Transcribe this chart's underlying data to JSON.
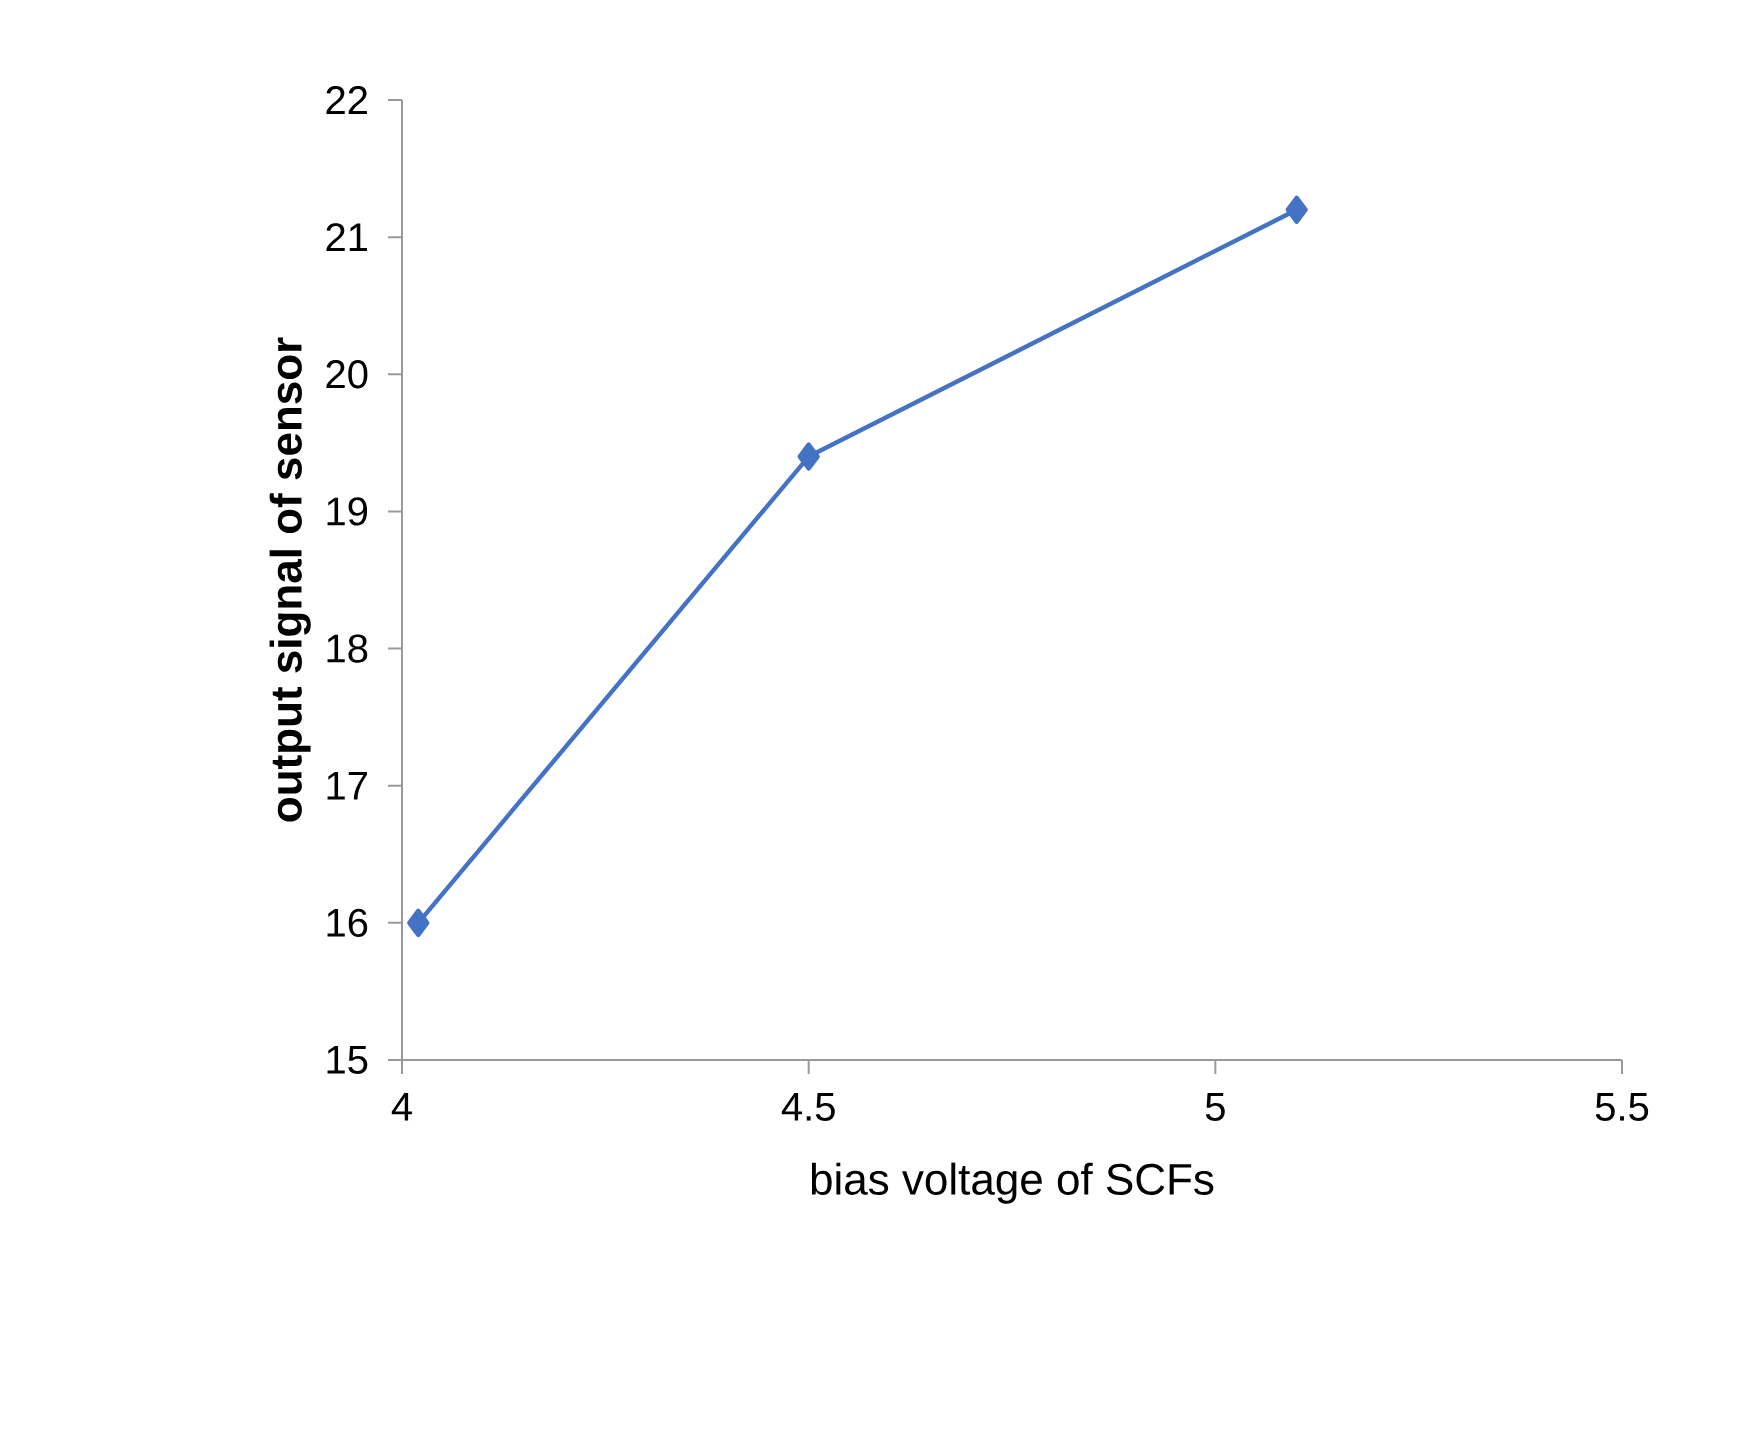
{
  "chart_data": {
    "type": "line",
    "xlabel": "bias voltage of SCFs",
    "ylabel": "output signal of sensor",
    "x": [
      4.02,
      4.5,
      5.1
    ],
    "series": [
      {
        "color": "#4472c4",
        "values": [
          16,
          19.4,
          21.2
        ]
      }
    ],
    "xlim": [
      4,
      5.5
    ],
    "xticks": [
      4,
      4.5,
      5,
      5.5
    ],
    "ylim": [
      15,
      22
    ],
    "yticks": [
      15,
      16,
      17,
      18,
      19,
      20,
      21,
      22
    ],
    "grid": false,
    "marker": "diamond",
    "line_style": "solid"
  }
}
